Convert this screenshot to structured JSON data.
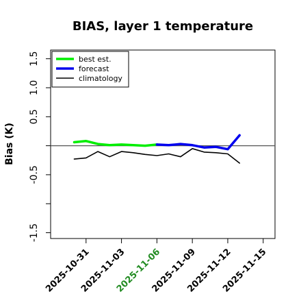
{
  "chart_data": {
    "type": "line",
    "title": "BIAS, layer 1 temperature",
    "xlabel": "",
    "ylabel": "Bias (K)",
    "xlim": [
      "2025-10-28",
      "2025-11-16"
    ],
    "ylim": [
      -1.6,
      1.65
    ],
    "y_ticks": [
      -1.5,
      -1.0,
      -0.5,
      0.0,
      0.5,
      1.0,
      1.5
    ],
    "y_tick_labels": [
      "-1.5",
      "",
      "-0.5",
      "",
      "0.5",
      "1.0",
      "1.5"
    ],
    "x_ticks": [
      "2025-10-31",
      "2025-11-03",
      "2025-11-06",
      "2025-11-09",
      "2025-11-12",
      "2025-11-15"
    ],
    "highlight_tick": "2025-11-06",
    "highlight_color": "#228B22",
    "reference_line": 0,
    "legend_position": "top-left",
    "series": [
      {
        "name": "best est.",
        "color": "#00ee00",
        "x": [
          "2025-10-30",
          "2025-10-31",
          "2025-11-01",
          "2025-11-02",
          "2025-11-03",
          "2025-11-04",
          "2025-11-05",
          "2025-11-06"
        ],
        "y": [
          0.06,
          0.08,
          0.03,
          0.01,
          0.02,
          0.01,
          0.0,
          0.02
        ]
      },
      {
        "name": "forecast",
        "color": "#0000ee",
        "x": [
          "2025-11-06",
          "2025-11-07",
          "2025-11-08",
          "2025-11-09",
          "2025-11-10",
          "2025-11-11",
          "2025-11-12",
          "2025-11-13"
        ],
        "y": [
          0.02,
          0.01,
          0.03,
          0.01,
          -0.03,
          -0.02,
          -0.06,
          0.18
        ]
      },
      {
        "name": "climatology",
        "color": "#000000",
        "x": [
          "2025-10-30",
          "2025-10-31",
          "2025-11-01",
          "2025-11-02",
          "2025-11-03",
          "2025-11-04",
          "2025-11-05",
          "2025-11-06",
          "2025-11-07",
          "2025-11-08",
          "2025-11-09",
          "2025-11-10",
          "2025-11-11",
          "2025-11-12",
          "2025-11-13"
        ],
        "y": [
          -0.23,
          -0.21,
          -0.1,
          -0.19,
          -0.1,
          -0.12,
          -0.15,
          -0.17,
          -0.14,
          -0.19,
          -0.05,
          -0.11,
          -0.12,
          -0.14,
          -0.3
        ]
      }
    ]
  }
}
